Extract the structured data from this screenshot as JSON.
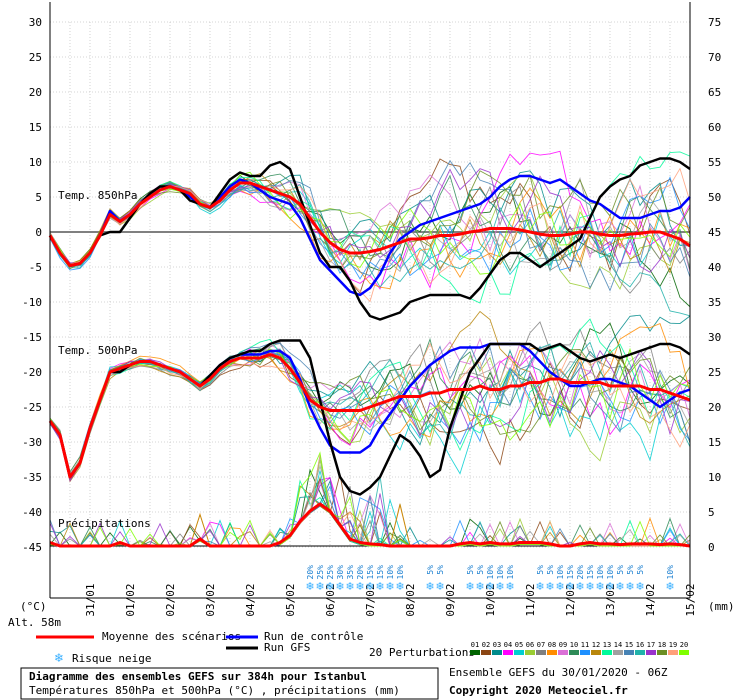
{
  "chart_data": {
    "type": "line",
    "title": "Diagramme des ensembles GEFS sur 384h pour Istanbul",
    "subtitle": "Températures 850hPa et 500hPa (°C) , précipitations (mm)",
    "run_info": "Ensemble GEFS du 30/01/2020 - 06Z",
    "copyright": "Copyright 2020 Meteociel.fr",
    "left_unit": "(°C)",
    "right_unit": "(mm)",
    "altitude": "Alt. 58m",
    "left_ticks": [
      "30",
      "25",
      "20",
      "15",
      "10",
      "5",
      "0",
      "-5",
      "-10",
      "-15",
      "-20",
      "-25",
      "-30",
      "-35",
      "-40",
      "-45"
    ],
    "right_ticks": [
      "75",
      "70",
      "65",
      "60",
      "55",
      "50",
      "45",
      "40",
      "35",
      "30",
      "25",
      "20",
      "15",
      "10",
      "5",
      "0"
    ],
    "x_ticks": [
      "31/01",
      "01/02",
      "02/02",
      "03/02",
      "04/02",
      "05/02",
      "06/02",
      "07/02",
      "08/02",
      "09/02",
      "10/02",
      "11/02",
      "12/02",
      "13/02",
      "14/02",
      "15/02"
    ],
    "panel_labels": {
      "t850": "Temp. 850hPa",
      "t500": "Temp. 500hPa",
      "precip": "Précipitations"
    },
    "ylim_left": [
      -45,
      30
    ],
    "ylim_right": [
      0,
      75
    ],
    "x_steps_per_day": 4,
    "series": [
      {
        "name": "Moyenne des scénarios",
        "color": "#ff0000",
        "panel": "t850",
        "values": [
          -0.5,
          -3,
          -4.8,
          -4.5,
          -3,
          -0.5,
          2.5,
          1.5,
          2.5,
          4,
          5,
          6,
          6.5,
          6,
          5.5,
          4,
          3.5,
          4.5,
          6,
          7,
          7,
          6.5,
          6,
          5.5,
          5,
          4,
          2,
          0,
          -1.5,
          -2.5,
          -3,
          -3,
          -2.8,
          -2.5,
          -2,
          -1.5,
          -1,
          -1,
          -0.8,
          -0.5,
          -0.5,
          -0.3,
          0,
          0.2,
          0.5,
          0.5,
          0.5,
          0.3,
          0,
          -0.3,
          -0.5,
          -0.5,
          -0.3,
          0,
          0,
          -0.3,
          -0.5,
          -0.5,
          -0.3,
          -0.2,
          0,
          0,
          -0.5,
          -1,
          -2
        ]
      },
      {
        "name": "Run de contrôle",
        "color": "#0000ff",
        "panel": "t850",
        "values": [
          -0.5,
          -3,
          -4.8,
          -4.5,
          -3,
          -0.5,
          3,
          1.5,
          2.5,
          4,
          5,
          6,
          6.5,
          6,
          5,
          4,
          3.5,
          5,
          6.5,
          7.5,
          7,
          6,
          5,
          4.5,
          4,
          2,
          -1,
          -4,
          -5.5,
          -7,
          -8.5,
          -9,
          -8,
          -6,
          -3,
          -1,
          0,
          1,
          1.5,
          2,
          2.5,
          3,
          3.5,
          4,
          5,
          6.5,
          7.5,
          8,
          8,
          7.5,
          7,
          7.5,
          6.5,
          5.5,
          4.5,
          4,
          3,
          2,
          2,
          2,
          2.5,
          3,
          3,
          3.5,
          5
        ]
      },
      {
        "name": "Run GFS",
        "color": "#000000",
        "panel": "t850",
        "values": [
          -0.5,
          -3,
          -4.8,
          -4.5,
          -3,
          -0.5,
          0,
          0,
          2,
          4,
          5.5,
          6.5,
          6.5,
          6,
          4.5,
          4,
          3.5,
          5.5,
          7.5,
          8.5,
          8,
          8,
          9.5,
          10,
          9,
          5,
          1,
          -3,
          -5,
          -5,
          -7,
          -10,
          -12,
          -12.5,
          -12,
          -11.5,
          -10,
          -9.5,
          -9,
          -9,
          -9,
          -9,
          -9.5,
          -8,
          -6,
          -4,
          -3,
          -3,
          -4,
          -5,
          -4,
          -3,
          -2,
          -1,
          2,
          5,
          6.5,
          7.5,
          8,
          9.5,
          10,
          10.5,
          10.5,
          10,
          9
        ]
      },
      {
        "name": "Moyenne des scénarios",
        "color": "#ff0000",
        "panel": "t500",
        "values": [
          -27,
          -29,
          -35,
          -33,
          -28,
          -24,
          -20,
          -19.5,
          -19,
          -18.5,
          -18.5,
          -19,
          -19.5,
          -20,
          -21,
          -22,
          -21,
          -19.5,
          -18.5,
          -18,
          -18,
          -18,
          -17.5,
          -18,
          -19.5,
          -21.5,
          -24,
          -25,
          -25.5,
          -25.5,
          -25.5,
          -25.5,
          -25,
          -24.5,
          -24,
          -23.5,
          -23.5,
          -23.5,
          -23,
          -23,
          -22.5,
          -22.5,
          -22.5,
          -22,
          -22.5,
          -22.5,
          -22,
          -22,
          -21.5,
          -21.5,
          -21,
          -21,
          -21.5,
          -21.5,
          -21.5,
          -21.5,
          -22,
          -22,
          -22,
          -22,
          -22.5,
          -22.5,
          -23,
          -23.5,
          -24
        ]
      },
      {
        "name": "Run de contrôle",
        "color": "#0000ff",
        "panel": "t500",
        "values": [
          -27,
          -29,
          -35,
          -33,
          -28,
          -24,
          -20,
          -20,
          -19,
          -18.5,
          -18.5,
          -19,
          -19.5,
          -20,
          -21,
          -22,
          -20.5,
          -19,
          -18,
          -17.5,
          -17.5,
          -17.5,
          -17,
          -17,
          -18,
          -21,
          -25,
          -28,
          -30.5,
          -31.5,
          -31.5,
          -31.5,
          -30.5,
          -28,
          -26,
          -24,
          -22,
          -20.5,
          -19,
          -18,
          -17,
          -16.5,
          -16.5,
          -16.5,
          -16,
          -16,
          -16,
          -16,
          -17,
          -18.5,
          -20,
          -21,
          -22,
          -22,
          -21.5,
          -21,
          -21,
          -21.5,
          -22,
          -23,
          -24,
          -25,
          -24,
          -23,
          -22.5
        ]
      },
      {
        "name": "Run GFS",
        "color": "#000000",
        "panel": "t500",
        "values": [
          -27,
          -29,
          -35,
          -33,
          -28,
          -24,
          -20,
          -20,
          -19,
          -18.5,
          -18.5,
          -19,
          -19.5,
          -20,
          -21,
          -22,
          -20.5,
          -19,
          -18,
          -17.5,
          -17,
          -17,
          -16,
          -15.5,
          -15.5,
          -15.5,
          -18,
          -24,
          -30,
          -35,
          -37,
          -37.5,
          -36.5,
          -35,
          -32,
          -29,
          -30,
          -32,
          -35,
          -34,
          -28,
          -24,
          -20,
          -18,
          -16,
          -16,
          -16,
          -16,
          -16,
          -17,
          -16.5,
          -16,
          -17,
          -18,
          -18.5,
          -18,
          -17.5,
          -18,
          -17.5,
          -17,
          -16.5,
          -16,
          -16,
          -16.5,
          -17.5
        ]
      },
      {
        "name": "Moyenne des scénarios",
        "color": "#ff0000",
        "panel": "precip",
        "values": [
          0.5,
          0,
          0,
          0,
          0,
          0,
          0,
          0.5,
          0,
          0,
          0,
          0,
          0,
          0,
          0,
          1,
          0,
          0,
          0,
          0,
          0,
          0,
          0,
          0.5,
          1.5,
          3.5,
          5,
          6,
          5,
          3,
          1,
          0.5,
          0.3,
          0.2,
          0,
          0,
          0,
          0,
          0,
          0,
          0,
          0.3,
          0.5,
          0.3,
          0.5,
          0.3,
          0.3,
          0.5,
          0.5,
          0.5,
          0.3,
          0,
          0,
          0.3,
          0.5,
          0.3,
          0.3,
          0.2,
          0.3,
          0.3,
          0.3,
          0.2,
          0.3,
          0.2,
          0
        ]
      }
    ],
    "snow_risk": {
      "label": "Risque neige",
      "entries": [
        {
          "date_index": 26,
          "pct": "20%"
        },
        {
          "date_index": 27,
          "pct": "25%"
        },
        {
          "date_index": 28,
          "pct": "25%"
        },
        {
          "date_index": 29,
          "pct": "30%"
        },
        {
          "date_index": 30,
          "pct": "35%"
        },
        {
          "date_index": 31,
          "pct": "20%"
        },
        {
          "date_index": 32,
          "pct": "15%"
        },
        {
          "date_index": 33,
          "pct": "15%"
        },
        {
          "date_index": 34,
          "pct": "10%"
        },
        {
          "date_index": 35,
          "pct": "10%"
        },
        {
          "date_index": 38,
          "pct": "5%"
        },
        {
          "date_index": 39,
          "pct": "5%"
        },
        {
          "date_index": 42,
          "pct": "5%"
        },
        {
          "date_index": 43,
          "pct": "5%"
        },
        {
          "date_index": 44,
          "pct": "10%"
        },
        {
          "date_index": 45,
          "pct": "10%"
        },
        {
          "date_index": 46,
          "pct": "10%"
        },
        {
          "date_index": 49,
          "pct": "5%"
        },
        {
          "date_index": 50,
          "pct": "5%"
        },
        {
          "date_index": 51,
          "pct": "10%"
        },
        {
          "date_index": 52,
          "pct": "15%"
        },
        {
          "date_index": 53,
          "pct": "20%"
        },
        {
          "date_index": 54,
          "pct": "15%"
        },
        {
          "date_index": 55,
          "pct": "10%"
        },
        {
          "date_index": 56,
          "pct": "10%"
        },
        {
          "date_index": 57,
          "pct": "5%"
        },
        {
          "date_index": 58,
          "pct": "5%"
        },
        {
          "date_index": 59,
          "pct": "5%"
        },
        {
          "date_index": 62,
          "pct": "10%"
        }
      ]
    },
    "perturbations": {
      "label": "20 Perturbations",
      "numbers": [
        "01",
        "02",
        "03",
        "04",
        "05",
        "06",
        "07",
        "08",
        "09",
        "10",
        "11",
        "12",
        "13",
        "14",
        "15",
        "16",
        "17",
        "18",
        "19",
        "20"
      ],
      "colors": [
        "#006400",
        "#8b4513",
        "#008b8b",
        "#ff00ff",
        "#00ced1",
        "#9acd32",
        "#808080",
        "#ff8c00",
        "#da70d6",
        "#2e8b57",
        "#1e90ff",
        "#b8860b",
        "#00fa9a",
        "#a0a0a0",
        "#4682b4",
        "#20b2aa",
        "#9932cc",
        "#6b8e23",
        "#ffa07a",
        "#7fff00"
      ]
    },
    "legend": {
      "mean": "Moyenne des scénarios",
      "control": "Run de contrôle",
      "gfs": "Run GFS",
      "snow": "Risque neige"
    }
  }
}
